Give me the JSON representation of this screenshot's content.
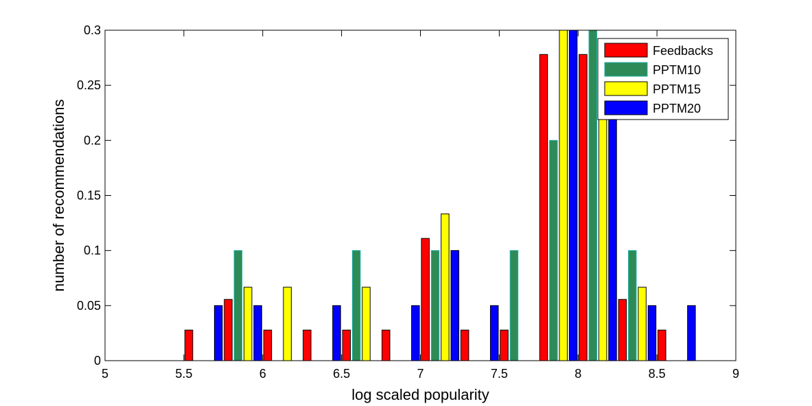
{
  "chart_data": {
    "type": "bar",
    "xlabel": "log scaled popularity",
    "ylabel": "number of recommendations",
    "xlim": [
      5,
      9
    ],
    "ylim": [
      0,
      0.3
    ],
    "x_ticks": [
      "5",
      "5.5",
      "6",
      "6.5",
      "7",
      "7.5",
      "8",
      "8.5",
      "9"
    ],
    "y_ticks": [
      "0",
      "0.05",
      "0.1",
      "0.15",
      "0.2",
      "0.25",
      "0.3"
    ],
    "bin_centers": [
      5.125,
      5.375,
      5.625,
      5.875,
      6.125,
      6.375,
      6.625,
      6.875,
      7.125,
      7.375,
      7.625,
      7.875,
      8.125,
      8.375,
      8.625,
      8.875
    ],
    "series": [
      {
        "name": "Feedbacks",
        "color": "#ff0000",
        "values": [
          0,
          0,
          0.0278,
          0.0556,
          0.0278,
          0.0278,
          0.0278,
          0.0278,
          0.111,
          0.0278,
          0.0278,
          0.278,
          0.278,
          0.0556,
          0.0278,
          0
        ]
      },
      {
        "name": "PPTM10",
        "color": "#2e8b57",
        "values": [
          0,
          0,
          0,
          0.1,
          0,
          0,
          0.1,
          0,
          0.1,
          0,
          0.1,
          0.2,
          0.3,
          0.1,
          0,
          0
        ]
      },
      {
        "name": "PPTM15",
        "color": "#ffff00",
        "values": [
          0,
          0,
          0,
          0.0667,
          0.0667,
          0,
          0.0667,
          0,
          0.1333,
          0,
          0,
          0.3,
          0.2333,
          0.0667,
          0,
          0
        ]
      },
      {
        "name": "PPTM20",
        "color": "#0000ff",
        "values": [
          0,
          0,
          0.05,
          0.05,
          0,
          0.05,
          0,
          0.05,
          0.1,
          0.05,
          0,
          0.3,
          0.25,
          0.05,
          0.05,
          0
        ]
      }
    ],
    "legend_position": "top-right",
    "grid": false
  }
}
